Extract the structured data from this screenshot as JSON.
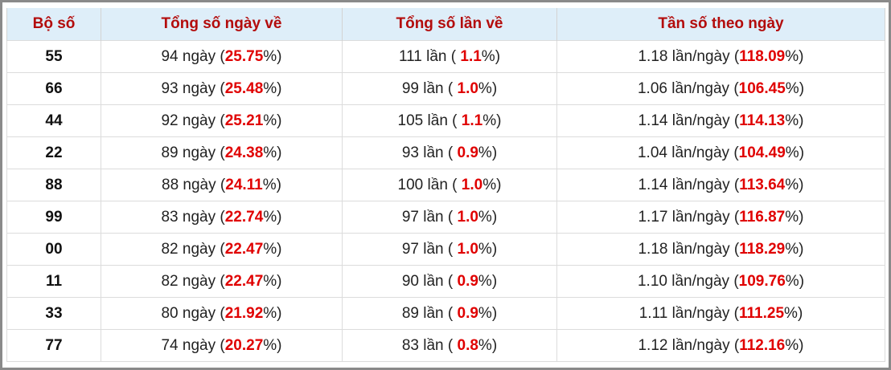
{
  "table": {
    "header": [
      "Bộ số",
      "Tổng số ngày về",
      "Tổng số lần về",
      "Tần số theo ngày"
    ],
    "rows": [
      [
        [
          "55"
        ],
        [
          "94 ngày (",
          "25.75",
          "%)"
        ],
        [
          "111 lần ( ",
          "1.1",
          "%)"
        ],
        [
          "1.18 lần/ngày (",
          "118.09",
          "%)"
        ]
      ],
      [
        [
          "66"
        ],
        [
          "93 ngày (",
          "25.48",
          "%)"
        ],
        [
          "99 lần ( ",
          "1.0",
          "%)"
        ],
        [
          "1.06 lần/ngày (",
          "106.45",
          "%)"
        ]
      ],
      [
        [
          "44"
        ],
        [
          "92 ngày (",
          "25.21",
          "%)"
        ],
        [
          "105 lần ( ",
          "1.1",
          "%)"
        ],
        [
          "1.14 lần/ngày (",
          "114.13",
          "%)"
        ]
      ],
      [
        [
          "22"
        ],
        [
          "89 ngày (",
          "24.38",
          "%)"
        ],
        [
          "93 lần ( ",
          "0.9",
          "%)"
        ],
        [
          "1.04 lần/ngày (",
          "104.49",
          "%)"
        ]
      ],
      [
        [
          "88"
        ],
        [
          "88 ngày (",
          "24.11",
          "%)"
        ],
        [
          "100 lần ( ",
          "1.0",
          "%)"
        ],
        [
          "1.14 lần/ngày (",
          "113.64",
          "%)"
        ]
      ],
      [
        [
          "99"
        ],
        [
          "83 ngày (",
          "22.74",
          "%)"
        ],
        [
          "97 lần ( ",
          "1.0",
          "%)"
        ],
        [
          "1.17 lần/ngày (",
          "116.87",
          "%)"
        ]
      ],
      [
        [
          "00"
        ],
        [
          "82 ngày (",
          "22.47",
          "%)"
        ],
        [
          "97 lần ( ",
          "1.0",
          "%)"
        ],
        [
          "1.18 lần/ngày (",
          "118.29",
          "%)"
        ]
      ],
      [
        [
          "11"
        ],
        [
          "82 ngày (",
          "22.47",
          "%)"
        ],
        [
          "90 lần ( ",
          "0.9",
          "%)"
        ],
        [
          "1.10 lần/ngày (",
          "109.76",
          "%)"
        ]
      ],
      [
        [
          "33"
        ],
        [
          "80 ngày (",
          "21.92",
          "%)"
        ],
        [
          "89 lần ( ",
          "0.9",
          "%)"
        ],
        [
          "1.11 lần/ngày (",
          "111.25",
          "%)"
        ]
      ],
      [
        [
          "77"
        ],
        [
          "74 ngày (",
          "20.27",
          "%)"
        ],
        [
          "83 lần ( ",
          "0.8",
          "%)"
        ],
        [
          "1.12 lần/ngày (",
          "112.16",
          "%)"
        ]
      ]
    ]
  }
}
